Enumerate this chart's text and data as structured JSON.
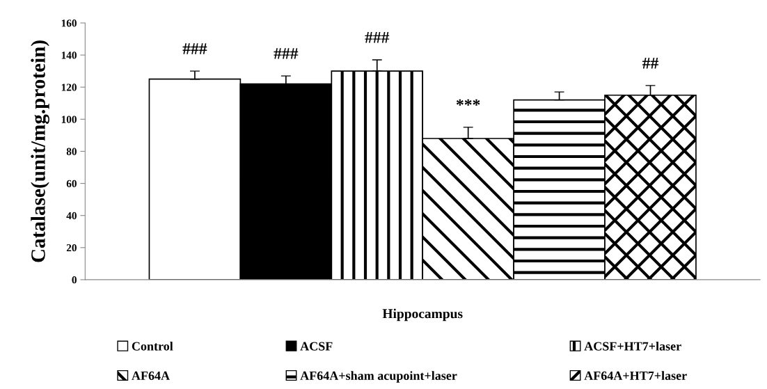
{
  "chart_data": {
    "type": "bar",
    "ylabel": "Catalase(unit/mg.protein)",
    "categories": [
      "Hippocampus"
    ],
    "series": [
      {
        "name": "Control",
        "color": "#ffffff",
        "values": [
          125
        ],
        "errors": [
          5
        ],
        "value_labels": [
          "###"
        ]
      },
      {
        "name": "ACSF",
        "color": "#000000",
        "values": [
          122
        ],
        "errors": [
          5
        ],
        "value_labels": [
          "###"
        ]
      },
      {
        "name": "ACSF+HT7+laser",
        "color": "#000000",
        "values": [
          130
        ],
        "errors": [
          7
        ],
        "value_labels": [
          "###"
        ]
      },
      {
        "name": "AF64A",
        "color": "#000000",
        "values": [
          88
        ],
        "errors": [
          7
        ],
        "value_labels": [
          "***"
        ]
      },
      {
        "name": "AF64A+sham acupoint+laser",
        "color": "#000000",
        "values": [
          112
        ],
        "errors": [
          5
        ],
        "value_labels": [
          null
        ]
      },
      {
        "name": "AF64A+HT7+laser",
        "color": "#000000",
        "values": [
          115
        ],
        "errors": [
          6
        ],
        "value_labels": [
          "##"
        ]
      }
    ],
    "ylim": [
      0,
      160
    ],
    "yticks": [
      0,
      20,
      40,
      60,
      80,
      100,
      120,
      140,
      160
    ],
    "grid": false,
    "legend": "bottom"
  }
}
